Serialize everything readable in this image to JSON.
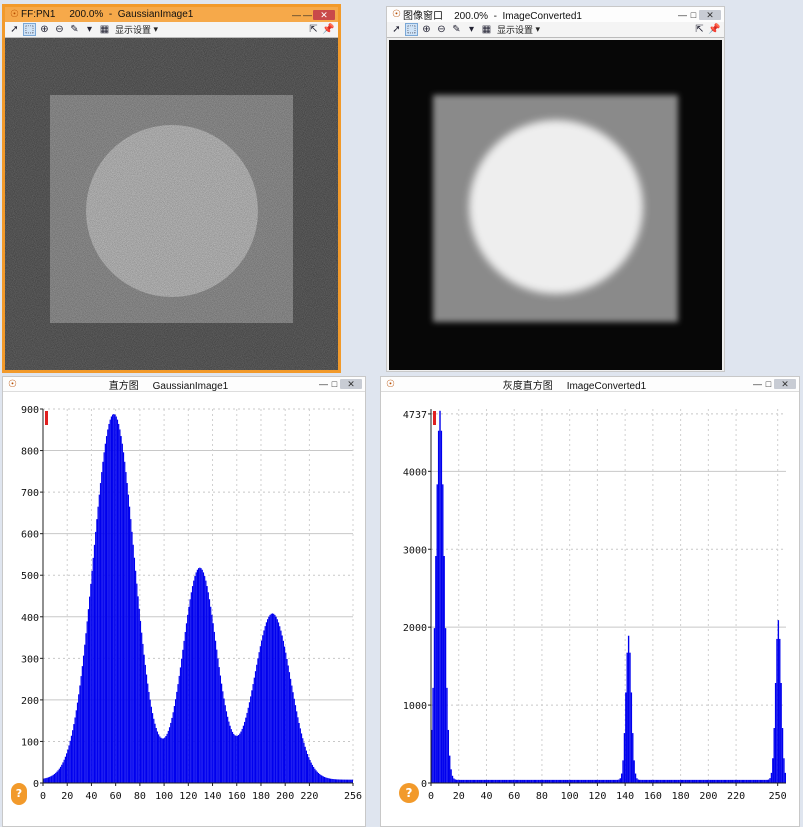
{
  "windows": {
    "src": {
      "title_id": "FF:PN1",
      "title_zoom": "200.0%",
      "title_name": "GaussianImage1",
      "toolbar_label": "显示设置",
      "image_alt": "noisy-square-circle"
    },
    "dst": {
      "title_id": "图像窗口",
      "title_zoom": "200.0%",
      "title_name": "ImageConverted1",
      "toolbar_label": "显示设置",
      "image_alt": "smoothed-square-circle"
    },
    "hist1": {
      "title_label": "直方图",
      "title_name": "GaussianImage1",
      "help": "?"
    },
    "hist2": {
      "title_label": "灰度直方图",
      "title_name": "ImageConverted1",
      "help": "?"
    }
  },
  "chart_data": [
    {
      "type": "bar",
      "title": "",
      "x": [
        0,
        256
      ],
      "ylim": [
        0,
        900
      ],
      "x_ticks": [
        "0",
        "20",
        "40",
        "60",
        "80",
        "100",
        "120",
        "140",
        "160",
        "180",
        "200",
        "220",
        "256"
      ],
      "y_ticks": [
        "0",
        "100",
        "200",
        "300",
        "400",
        "500",
        "600",
        "700",
        "800",
        "900"
      ],
      "peaks": [
        {
          "center": 58,
          "height": 880,
          "width": 17
        },
        {
          "center": 129,
          "height": 510,
          "width": 14
        },
        {
          "center": 189,
          "height": 400,
          "width": 15
        }
      ],
      "series": [
        {
          "name": "",
          "color": "#0000ee"
        }
      ]
    },
    {
      "type": "bar",
      "title": "",
      "x": [
        0,
        256
      ],
      "ylim": [
        0,
        4800
      ],
      "x_ticks": [
        "0",
        "20",
        "40",
        "60",
        "80",
        "100",
        "120",
        "140",
        "160",
        "180",
        "200",
        "220",
        "250"
      ],
      "y_ticks": [
        "0",
        "1000",
        "2000",
        "3000",
        "4000",
        "4737"
      ],
      "peaks": [
        {
          "center": 6,
          "height": 4737,
          "width": 3
        },
        {
          "center": 142,
          "height": 1850,
          "width": 2
        },
        {
          "center": 250,
          "height": 2050,
          "width": 2
        }
      ],
      "series": [
        {
          "name": "",
          "color": "#0000ee"
        }
      ]
    }
  ]
}
